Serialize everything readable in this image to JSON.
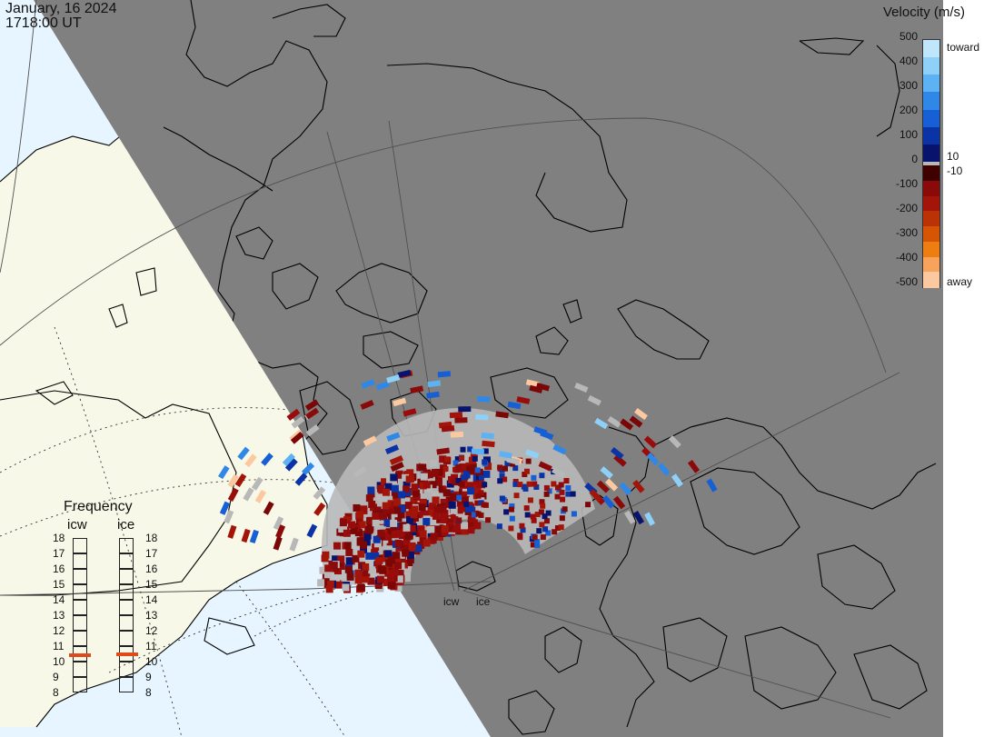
{
  "header": {
    "date": "January, 16 2024",
    "time": "1718:00 UT"
  },
  "colorbar": {
    "title": "Velocity (m/s)",
    "ticks": [
      "500",
      "400",
      "300",
      "200",
      "100",
      "0",
      "-100",
      "-200",
      "-300",
      "-400",
      "-500"
    ],
    "toward_label": "toward",
    "away_label": "away",
    "pos_threshold": "10",
    "neg_threshold": "-10",
    "colors": [
      "#bfe6fb",
      "#8fd0f8",
      "#5cb2f2",
      "#2f88e8",
      "#165fd4",
      "#0a33a6",
      "#08136e",
      "#3f0000",
      "#8a0a0a",
      "#a21508",
      "#bb3206",
      "#d55504",
      "#ee7e12",
      "#f7a35c",
      "#fcc89f"
    ],
    "gray": "#b8b8b8"
  },
  "frequency": {
    "title": "Frequency",
    "columns": [
      "icw",
      "ice"
    ],
    "scale": [
      "18",
      "17",
      "16",
      "15",
      "14",
      "13",
      "12",
      "11",
      "10",
      "9",
      "8"
    ],
    "icw_mhz": 10.4,
    "ice_mhz": 10.5,
    "marker_color": "#e04a1a"
  },
  "beam_labels": [
    "icw",
    "ice"
  ],
  "map_colors": {
    "night": "#808080",
    "day_land": "#f8f8e8",
    "day_ocean": "#e6f5ff",
    "coast": "#000000",
    "grid": "#505050",
    "outside": "#ffffff"
  }
}
